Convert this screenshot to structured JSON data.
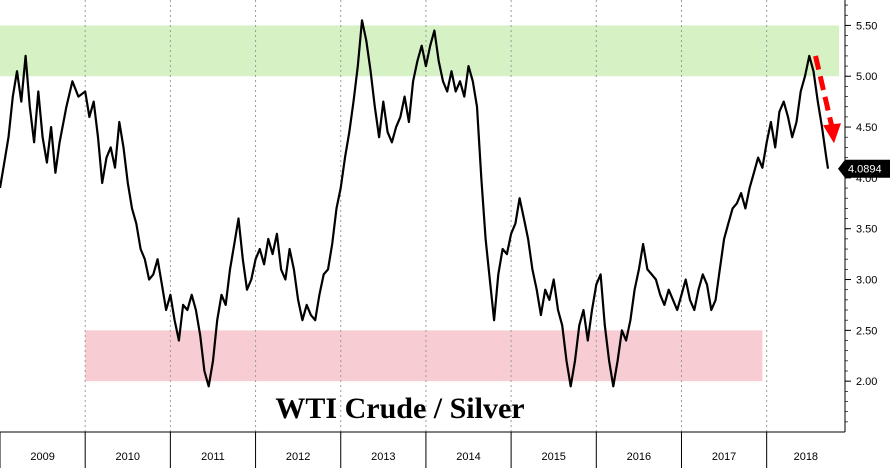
{
  "chart_data": {
    "type": "line",
    "title": "WTI Crude / Silver",
    "xlabel": "",
    "ylabel": "",
    "x_range": [
      2009.0,
      2018.72
    ],
    "ylim": [
      1.5,
      5.75
    ],
    "y_ticks": [
      "5.50",
      "5.00",
      "4.50",
      "4.00",
      "3.50",
      "3.00",
      "2.50",
      "2.00"
    ],
    "y_tick_values": [
      5.5,
      5.0,
      4.5,
      4.0,
      3.5,
      3.0,
      2.5,
      2.0
    ],
    "x_tick_labels": [
      "2009",
      "2010",
      "2011",
      "2012",
      "2013",
      "2014",
      "2015",
      "2016",
      "2017",
      "2018"
    ],
    "grid": "vertical dashed at year boundaries",
    "last_value": "4.0894",
    "bands": [
      {
        "name": "upper",
        "y_from": 5.0,
        "y_to": 5.5,
        "x_from": 2009.0,
        "x_to": 2018.85,
        "color": "#d6f2c4"
      },
      {
        "name": "lower",
        "y_from": 2.0,
        "y_to": 2.5,
        "x_from": 2010.0,
        "x_to": 2017.95,
        "color": "#f7ccd2"
      }
    ],
    "annotation_arrow": {
      "from": [
        2018.55,
        5.2
      ],
      "to": [
        2018.72,
        4.42
      ],
      "color": "#ff0000",
      "style": "dashed arrow"
    },
    "series": [
      {
        "values": [
          [
            2009.0,
            3.9
          ],
          [
            2009.05,
            4.15
          ],
          [
            2009.1,
            4.4
          ],
          [
            2009.15,
            4.8
          ],
          [
            2009.2,
            5.05
          ],
          [
            2009.25,
            4.75
          ],
          [
            2009.3,
            5.2
          ],
          [
            2009.35,
            4.7
          ],
          [
            2009.4,
            4.35
          ],
          [
            2009.45,
            4.85
          ],
          [
            2009.5,
            4.4
          ],
          [
            2009.55,
            4.15
          ],
          [
            2009.6,
            4.5
          ],
          [
            2009.65,
            4.05
          ],
          [
            2009.7,
            4.35
          ],
          [
            2009.78,
            4.7
          ],
          [
            2009.85,
            4.95
          ],
          [
            2009.92,
            4.8
          ],
          [
            2010.0,
            4.85
          ],
          [
            2010.05,
            4.6
          ],
          [
            2010.1,
            4.75
          ],
          [
            2010.15,
            4.4
          ],
          [
            2010.2,
            3.95
          ],
          [
            2010.25,
            4.2
          ],
          [
            2010.3,
            4.3
          ],
          [
            2010.35,
            4.1
          ],
          [
            2010.4,
            4.55
          ],
          [
            2010.45,
            4.3
          ],
          [
            2010.5,
            3.95
          ],
          [
            2010.55,
            3.7
          ],
          [
            2010.6,
            3.55
          ],
          [
            2010.65,
            3.3
          ],
          [
            2010.7,
            3.2
          ],
          [
            2010.75,
            3.0
          ],
          [
            2010.8,
            3.05
          ],
          [
            2010.85,
            3.2
          ],
          [
            2010.9,
            2.95
          ],
          [
            2010.95,
            2.7
          ],
          [
            2011.0,
            2.85
          ],
          [
            2011.05,
            2.6
          ],
          [
            2011.1,
            2.4
          ],
          [
            2011.15,
            2.75
          ],
          [
            2011.2,
            2.7
          ],
          [
            2011.25,
            2.85
          ],
          [
            2011.3,
            2.7
          ],
          [
            2011.35,
            2.45
          ],
          [
            2011.4,
            2.1
          ],
          [
            2011.45,
            1.95
          ],
          [
            2011.5,
            2.2
          ],
          [
            2011.55,
            2.6
          ],
          [
            2011.6,
            2.85
          ],
          [
            2011.65,
            2.75
          ],
          [
            2011.7,
            3.1
          ],
          [
            2011.75,
            3.35
          ],
          [
            2011.8,
            3.6
          ],
          [
            2011.85,
            3.2
          ],
          [
            2011.9,
            2.9
          ],
          [
            2011.95,
            3.0
          ],
          [
            2012.0,
            3.2
          ],
          [
            2012.05,
            3.3
          ],
          [
            2012.1,
            3.15
          ],
          [
            2012.15,
            3.4
          ],
          [
            2012.2,
            3.25
          ],
          [
            2012.25,
            3.45
          ],
          [
            2012.3,
            3.1
          ],
          [
            2012.35,
            3.0
          ],
          [
            2012.4,
            3.3
          ],
          [
            2012.45,
            3.1
          ],
          [
            2012.5,
            2.8
          ],
          [
            2012.55,
            2.6
          ],
          [
            2012.6,
            2.75
          ],
          [
            2012.65,
            2.65
          ],
          [
            2012.7,
            2.6
          ],
          [
            2012.75,
            2.85
          ],
          [
            2012.8,
            3.05
          ],
          [
            2012.85,
            3.1
          ],
          [
            2012.9,
            3.35
          ],
          [
            2012.95,
            3.7
          ],
          [
            2013.0,
            3.9
          ],
          [
            2013.05,
            4.2
          ],
          [
            2013.1,
            4.45
          ],
          [
            2013.15,
            4.75
          ],
          [
            2013.2,
            5.1
          ],
          [
            2013.25,
            5.55
          ],
          [
            2013.3,
            5.35
          ],
          [
            2013.35,
            5.05
          ],
          [
            2013.4,
            4.7
          ],
          [
            2013.45,
            4.4
          ],
          [
            2013.5,
            4.75
          ],
          [
            2013.55,
            4.45
          ],
          [
            2013.6,
            4.35
          ],
          [
            2013.65,
            4.5
          ],
          [
            2013.7,
            4.6
          ],
          [
            2013.75,
            4.8
          ],
          [
            2013.8,
            4.55
          ],
          [
            2013.85,
            4.95
          ],
          [
            2013.9,
            5.15
          ],
          [
            2013.95,
            5.3
          ],
          [
            2014.0,
            5.1
          ],
          [
            2014.05,
            5.3
          ],
          [
            2014.1,
            5.45
          ],
          [
            2014.15,
            5.15
          ],
          [
            2014.2,
            4.95
          ],
          [
            2014.25,
            4.85
          ],
          [
            2014.3,
            5.05
          ],
          [
            2014.35,
            4.85
          ],
          [
            2014.4,
            4.95
          ],
          [
            2014.45,
            4.8
          ],
          [
            2014.5,
            5.1
          ],
          [
            2014.55,
            4.95
          ],
          [
            2014.6,
            4.7
          ],
          [
            2014.65,
            4.0
          ],
          [
            2014.7,
            3.4
          ],
          [
            2014.75,
            3.0
          ],
          [
            2014.8,
            2.6
          ],
          [
            2014.85,
            3.05
          ],
          [
            2014.9,
            3.3
          ],
          [
            2014.95,
            3.25
          ],
          [
            2015.0,
            3.45
          ],
          [
            2015.05,
            3.55
          ],
          [
            2015.1,
            3.8
          ],
          [
            2015.15,
            3.6
          ],
          [
            2015.2,
            3.4
          ],
          [
            2015.25,
            3.1
          ],
          [
            2015.3,
            2.9
          ],
          [
            2015.35,
            2.65
          ],
          [
            2015.4,
            2.9
          ],
          [
            2015.45,
            2.8
          ],
          [
            2015.5,
            3.0
          ],
          [
            2015.55,
            2.7
          ],
          [
            2015.6,
            2.55
          ],
          [
            2015.65,
            2.2
          ],
          [
            2015.7,
            1.95
          ],
          [
            2015.75,
            2.2
          ],
          [
            2015.8,
            2.55
          ],
          [
            2015.85,
            2.7
          ],
          [
            2015.9,
            2.4
          ],
          [
            2015.95,
            2.7
          ],
          [
            2016.0,
            2.95
          ],
          [
            2016.05,
            3.05
          ],
          [
            2016.1,
            2.55
          ],
          [
            2016.15,
            2.2
          ],
          [
            2016.2,
            1.95
          ],
          [
            2016.25,
            2.2
          ],
          [
            2016.3,
            2.5
          ],
          [
            2016.35,
            2.4
          ],
          [
            2016.4,
            2.6
          ],
          [
            2016.45,
            2.9
          ],
          [
            2016.5,
            3.1
          ],
          [
            2016.55,
            3.35
          ],
          [
            2016.6,
            3.1
          ],
          [
            2016.65,
            3.05
          ],
          [
            2016.7,
            3.0
          ],
          [
            2016.75,
            2.85
          ],
          [
            2016.8,
            2.75
          ],
          [
            2016.85,
            2.9
          ],
          [
            2016.9,
            2.8
          ],
          [
            2016.95,
            2.7
          ],
          [
            2017.0,
            2.85
          ],
          [
            2017.05,
            3.0
          ],
          [
            2017.1,
            2.8
          ],
          [
            2017.15,
            2.7
          ],
          [
            2017.2,
            2.9
          ],
          [
            2017.25,
            3.05
          ],
          [
            2017.3,
            2.95
          ],
          [
            2017.35,
            2.7
          ],
          [
            2017.4,
            2.8
          ],
          [
            2017.45,
            3.1
          ],
          [
            2017.5,
            3.4
          ],
          [
            2017.55,
            3.55
          ],
          [
            2017.6,
            3.7
          ],
          [
            2017.65,
            3.75
          ],
          [
            2017.7,
            3.85
          ],
          [
            2017.75,
            3.7
          ],
          [
            2017.8,
            3.9
          ],
          [
            2017.85,
            4.05
          ],
          [
            2017.9,
            4.2
          ],
          [
            2017.95,
            4.1
          ],
          [
            2018.0,
            4.35
          ],
          [
            2018.05,
            4.55
          ],
          [
            2018.1,
            4.3
          ],
          [
            2018.15,
            4.65
          ],
          [
            2018.2,
            4.75
          ],
          [
            2018.25,
            4.6
          ],
          [
            2018.3,
            4.4
          ],
          [
            2018.35,
            4.55
          ],
          [
            2018.4,
            4.85
          ],
          [
            2018.45,
            5.0
          ],
          [
            2018.5,
            5.2
          ],
          [
            2018.55,
            5.05
          ],
          [
            2018.6,
            4.75
          ],
          [
            2018.65,
            4.5
          ],
          [
            2018.7,
            4.2
          ],
          [
            2018.72,
            4.09
          ]
        ]
      }
    ]
  },
  "colors": {
    "line": "#000000",
    "upper_band": "#d6f2c4",
    "lower_band": "#f7ccd2",
    "arrow": "#ff0000",
    "last_badge": "#000000",
    "grid": "#9a9a9a"
  }
}
